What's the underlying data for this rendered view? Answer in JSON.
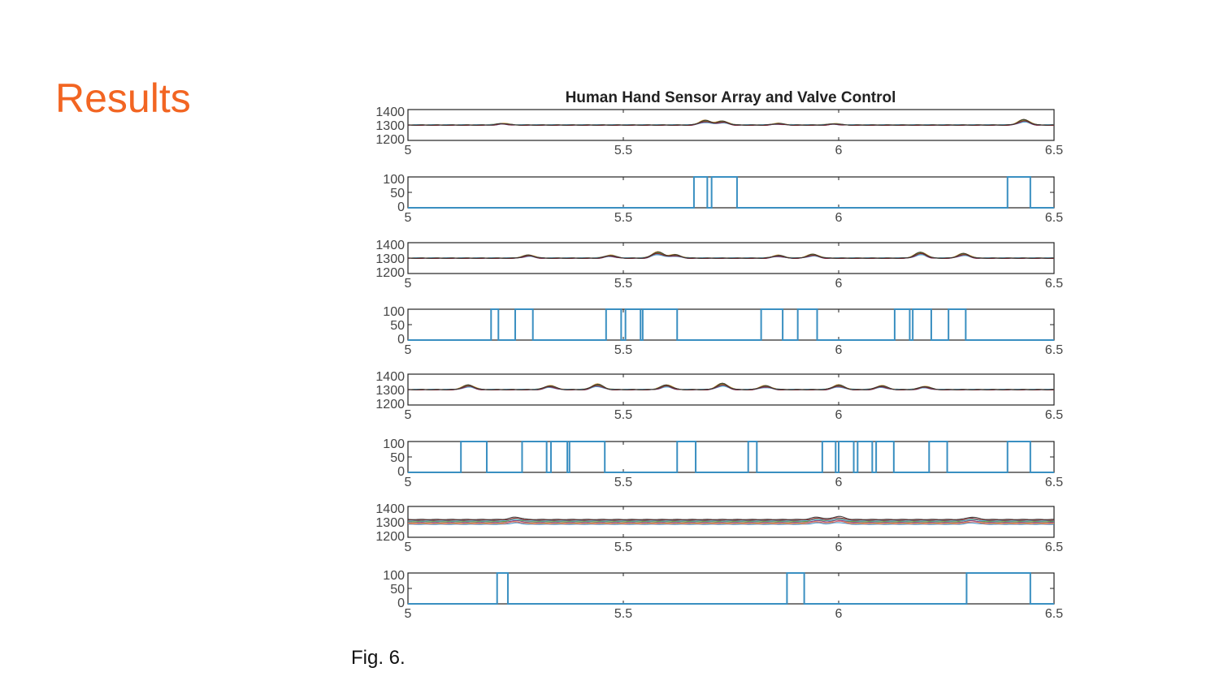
{
  "slide": {
    "title": "Results",
    "caption": "Fig. 6."
  },
  "colors": {
    "title": "#f26522",
    "axis": "#222222",
    "tick_label": "#444444",
    "valve": "#3a8fc1",
    "sensor_lines": [
      "#3a8fc1",
      "#d9534f",
      "#e0a030",
      "#7b3fa0",
      "#5aa02c",
      "#4fb3d9",
      "#8b1a1a",
      "#333333"
    ]
  },
  "chart_data": {
    "type": "line",
    "title": "Human Hand Sensor Array and Valve Control",
    "xlim": [
      5,
      6.5
    ],
    "xticks": [
      5,
      5.5,
      6,
      6.5
    ],
    "xtick_labels": [
      "5",
      "5.5",
      "6",
      "6.5"
    ],
    "panels": [
      {
        "kind": "sensor",
        "ylim": [
          1200,
          1400
        ],
        "ytick_labels": [
          "1400",
          "1300",
          "1200"
        ],
        "yticks": [
          1400,
          1300,
          1200
        ],
        "baseline": 1300,
        "bumps": [
          [
            5.22,
            10
          ],
          [
            5.69,
            30
          ],
          [
            5.73,
            25
          ],
          [
            5.86,
            10
          ],
          [
            5.99,
            8
          ],
          [
            6.43,
            35
          ]
        ]
      },
      {
        "kind": "valve",
        "ylim": [
          0,
          100
        ],
        "ytick_labels": [
          "100",
          "50",
          "0"
        ],
        "yticks": [
          100,
          50,
          0
        ],
        "pulses": [
          [
            5.664,
            5.695
          ],
          [
            5.705,
            5.764
          ],
          [
            6.392,
            6.445
          ]
        ]
      },
      {
        "kind": "sensor",
        "ylim": [
          1200,
          1400
        ],
        "ytick_labels": [
          "1400",
          "1300",
          "1200"
        ],
        "yticks": [
          1400,
          1300,
          1200
        ],
        "baseline": 1300,
        "bumps": [
          [
            5.28,
            20
          ],
          [
            5.47,
            18
          ],
          [
            5.58,
            40
          ],
          [
            5.62,
            22
          ],
          [
            5.86,
            18
          ],
          [
            5.94,
            25
          ],
          [
            6.19,
            38
          ],
          [
            6.29,
            30
          ]
        ]
      },
      {
        "kind": "valve",
        "ylim": [
          0,
          100
        ],
        "ytick_labels": [
          "100",
          "50",
          "0"
        ],
        "yticks": [
          100,
          50,
          0
        ],
        "pulses": [
          [
            5.193,
            5.21
          ],
          [
            5.249,
            5.29
          ],
          [
            5.46,
            5.495
          ],
          [
            5.505,
            5.54
          ],
          [
            5.545,
            5.625
          ],
          [
            5.82,
            5.87
          ],
          [
            5.905,
            5.95
          ],
          [
            6.13,
            6.165
          ],
          [
            6.172,
            6.215
          ],
          [
            6.255,
            6.295
          ]
        ]
      },
      {
        "kind": "sensor",
        "ylim": [
          1200,
          1400
        ],
        "ytick_labels": [
          "1400",
          "1300",
          "1200"
        ],
        "yticks": [
          1400,
          1300,
          1200
        ],
        "baseline": 1300,
        "bumps": [
          [
            5.14,
            30
          ],
          [
            5.33,
            25
          ],
          [
            5.44,
            35
          ],
          [
            5.6,
            30
          ],
          [
            5.73,
            40
          ],
          [
            5.83,
            25
          ],
          [
            6.0,
            30
          ],
          [
            6.1,
            25
          ],
          [
            6.2,
            20
          ]
        ]
      },
      {
        "kind": "valve",
        "ylim": [
          0,
          100
        ],
        "ytick_labels": [
          "100",
          "50",
          "0"
        ],
        "yticks": [
          100,
          50,
          0
        ],
        "pulses": [
          [
            5.123,
            5.183
          ],
          [
            5.265,
            5.322
          ],
          [
            5.332,
            5.37
          ],
          [
            5.375,
            5.457
          ],
          [
            5.625,
            5.668
          ],
          [
            5.79,
            5.81
          ],
          [
            5.962,
            5.993
          ],
          [
            6.0,
            6.035
          ],
          [
            6.044,
            6.078
          ],
          [
            6.087,
            6.128
          ],
          [
            6.21,
            6.252
          ],
          [
            6.392,
            6.445
          ]
        ]
      },
      {
        "kind": "sensor",
        "ylim": [
          1200,
          1400
        ],
        "ytick_labels": [
          "1400",
          "1300",
          "1200"
        ],
        "yticks": [
          1400,
          1300,
          1200
        ],
        "baseline": 1300,
        "spread": true,
        "bumps": [
          [
            5.25,
            15
          ],
          [
            5.95,
            15
          ],
          [
            6.0,
            20
          ],
          [
            6.31,
            15
          ]
        ]
      },
      {
        "kind": "valve",
        "ylim": [
          0,
          100
        ],
        "ytick_labels": [
          "100",
          "50",
          "0"
        ],
        "yticks": [
          100,
          50,
          0
        ],
        "pulses": [
          [
            5.207,
            5.232
          ],
          [
            5.88,
            5.92
          ],
          [
            6.297,
            6.445
          ]
        ]
      }
    ]
  }
}
